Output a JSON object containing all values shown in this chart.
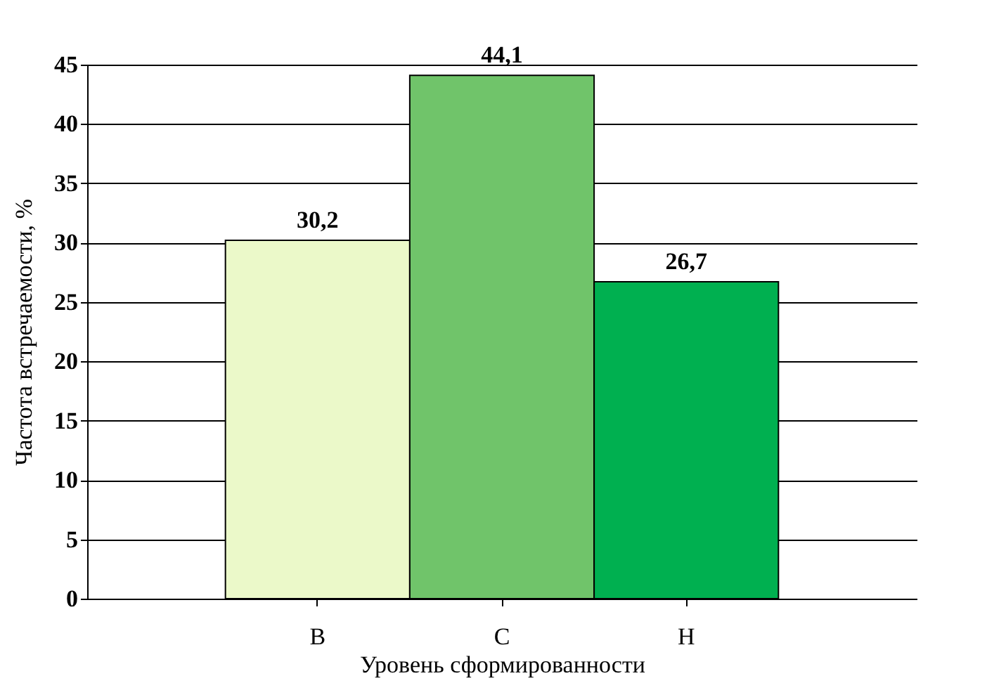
{
  "chart_data": {
    "type": "bar",
    "xlabel": "Уровень сформированности",
    "ylabel": "Частота встречаемости, %",
    "categories": [
      "В",
      "С",
      "Н"
    ],
    "values": [
      30.2,
      44.1,
      26.7
    ],
    "colors": [
      "#ebf9c9",
      "#70c46a",
      "#00b050"
    ],
    "value_labels": [
      "30,2",
      "44,1",
      "26,7"
    ],
    "ylim": [
      0,
      45
    ],
    "yticks": [
      0,
      5,
      10,
      15,
      20,
      25,
      30,
      35,
      40,
      45
    ],
    "grid": "y"
  }
}
